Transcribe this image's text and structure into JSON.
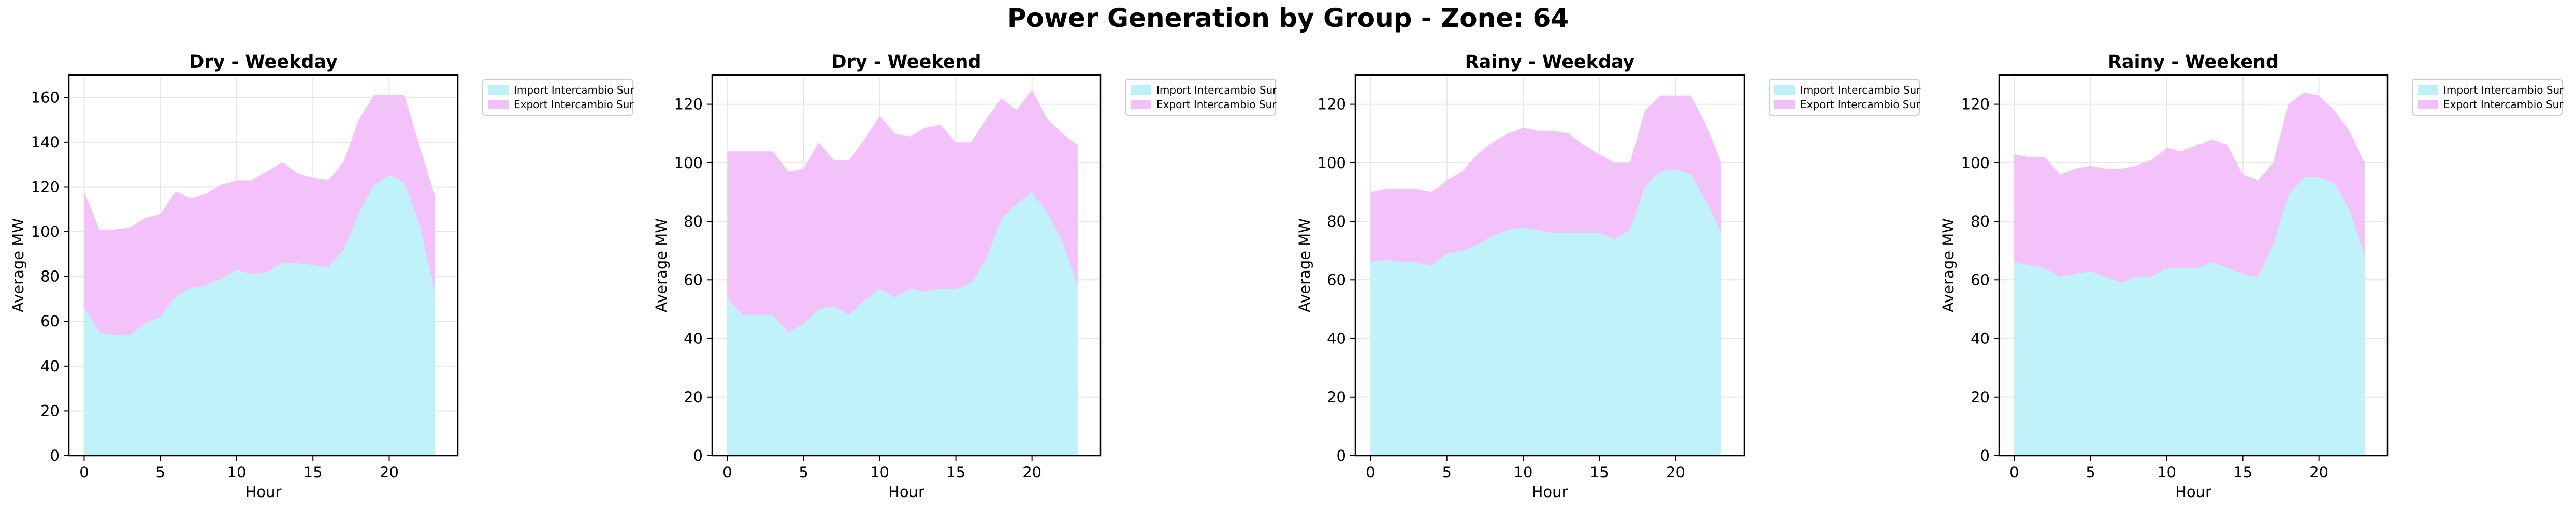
{
  "figure": {
    "title": "Power Generation by Group - Zone: 64"
  },
  "colors": {
    "import_fill": "#bdf1fa",
    "export_fill": "#f2bffb",
    "grid": "#e6e6e6",
    "axis": "#000000"
  },
  "chart_data": [
    {
      "type": "area",
      "stacked": true,
      "title": "Dry - Weekday",
      "xlabel": "Hour",
      "ylabel": "Average MW",
      "xlim": [
        -1,
        24.5
      ],
      "ylim": [
        0,
        170
      ],
      "xticks": [
        0,
        5,
        10,
        15,
        20
      ],
      "yticks": [
        0,
        20,
        40,
        60,
        80,
        100,
        120,
        140,
        160
      ],
      "grid": true,
      "legend_position": "outside-right-top",
      "x": [
        0,
        1,
        2,
        3,
        4,
        5,
        6,
        7,
        8,
        9,
        10,
        11,
        12,
        13,
        14,
        15,
        16,
        17,
        18,
        19,
        20,
        21,
        22,
        23
      ],
      "series": [
        {
          "name": "Import Intercambio Sur",
          "values": [
            66,
            55,
            54,
            54,
            59,
            62,
            71,
            75,
            76,
            79,
            83,
            81,
            82,
            86,
            86,
            85,
            84,
            92,
            108,
            121,
            125,
            122,
            103,
            73
          ]
        },
        {
          "name": "Export Intercambio Sur",
          "values": [
            52,
            46,
            47,
            48,
            47,
            46,
            47,
            40,
            41,
            42,
            40,
            42,
            45,
            45,
            40,
            39,
            39,
            39,
            42,
            40,
            36,
            39,
            35,
            43
          ]
        }
      ]
    },
    {
      "type": "area",
      "stacked": true,
      "title": "Dry - Weekend",
      "xlabel": "Hour",
      "ylabel": "Average MW",
      "xlim": [
        -1,
        24.5
      ],
      "ylim": [
        0,
        130
      ],
      "xticks": [
        0,
        5,
        10,
        15,
        20
      ],
      "yticks": [
        0,
        20,
        40,
        60,
        80,
        100,
        120
      ],
      "grid": true,
      "legend_position": "outside-right-top",
      "x": [
        0,
        1,
        2,
        3,
        4,
        5,
        6,
        7,
        8,
        9,
        10,
        11,
        12,
        13,
        14,
        15,
        16,
        17,
        18,
        19,
        20,
        21,
        22,
        23
      ],
      "series": [
        {
          "name": "Import Intercambio Sur",
          "values": [
            54,
            48,
            48,
            48,
            42,
            45,
            50,
            51,
            48,
            53,
            57,
            54,
            57,
            56,
            57,
            57,
            59,
            67,
            81,
            86,
            90,
            83,
            73,
            58
          ]
        },
        {
          "name": "Export Intercambio Sur",
          "values": [
            50,
            56,
            56,
            56,
            55,
            53,
            57,
            50,
            53,
            55,
            59,
            56,
            52,
            56,
            56,
            50,
            48,
            48,
            41,
            32,
            35,
            32,
            37,
            48
          ]
        }
      ]
    },
    {
      "type": "area",
      "stacked": true,
      "title": "Rainy - Weekday",
      "xlabel": "Hour",
      "ylabel": "Average MW",
      "xlim": [
        -1,
        24.5
      ],
      "ylim": [
        0,
        130
      ],
      "xticks": [
        0,
        5,
        10,
        15,
        20
      ],
      "yticks": [
        0,
        20,
        40,
        60,
        80,
        100,
        120
      ],
      "grid": true,
      "legend_position": "outside-right-top",
      "x": [
        0,
        1,
        2,
        3,
        4,
        5,
        6,
        7,
        8,
        9,
        10,
        11,
        12,
        13,
        14,
        15,
        16,
        17,
        18,
        19,
        20,
        21,
        22,
        23
      ],
      "series": [
        {
          "name": "Import Intercambio Sur",
          "values": [
            66,
            67,
            66,
            66,
            65,
            69,
            70,
            72,
            75,
            77,
            78,
            77,
            76,
            76,
            76,
            76,
            74,
            77,
            92,
            97,
            98,
            96,
            87,
            76
          ]
        },
        {
          "name": "Export Intercambio Sur",
          "values": [
            24,
            24,
            25,
            25,
            25,
            25,
            27,
            31,
            32,
            33,
            34,
            34,
            35,
            34,
            30,
            27,
            26,
            23,
            26,
            26,
            25,
            27,
            26,
            24
          ]
        }
      ]
    },
    {
      "type": "area",
      "stacked": true,
      "title": "Rainy - Weekend",
      "xlabel": "Hour",
      "ylabel": "Average MW",
      "xlim": [
        -1,
        24.5
      ],
      "ylim": [
        0,
        130
      ],
      "xticks": [
        0,
        5,
        10,
        15,
        20
      ],
      "yticks": [
        0,
        20,
        40,
        60,
        80,
        100,
        120
      ],
      "grid": true,
      "legend_position": "outside-right-top",
      "x": [
        0,
        1,
        2,
        3,
        4,
        5,
        6,
        7,
        8,
        9,
        10,
        11,
        12,
        13,
        14,
        15,
        16,
        17,
        18,
        19,
        20,
        21,
        22,
        23
      ],
      "series": [
        {
          "name": "Import Intercambio Sur",
          "values": [
            66,
            65,
            64,
            61,
            62,
            63,
            61,
            59,
            61,
            61,
            64,
            64,
            64,
            66,
            64,
            62,
            61,
            72,
            89,
            95,
            95,
            93,
            84,
            68
          ]
        },
        {
          "name": "Export Intercambio Sur",
          "values": [
            37,
            37,
            38,
            35,
            36,
            36,
            37,
            39,
            38,
            40,
            41,
            40,
            42,
            42,
            42,
            34,
            33,
            28,
            31,
            29,
            28,
            25,
            27,
            32
          ]
        }
      ]
    }
  ]
}
